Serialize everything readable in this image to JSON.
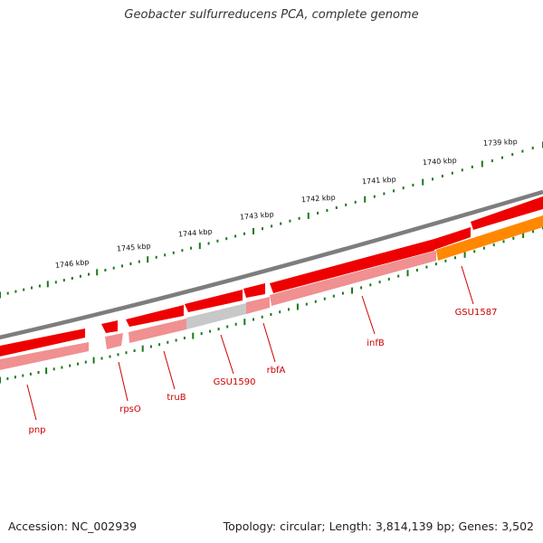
{
  "title": "Geobacter sulfurreducens PCA, complete genome",
  "footer": {
    "accession": "Accession: NC_002939",
    "topology": "Topology: circular; Length: 3,814,139 bp; Genes: 3,502"
  },
  "ruler": {
    "unit": "kbp",
    "ticks": [
      {
        "label": "1739 kbp"
      },
      {
        "label": "1740 kbp"
      },
      {
        "label": "1741 kbp"
      },
      {
        "label": "1742 kbp"
      },
      {
        "label": "1743 kbp"
      },
      {
        "label": "1744 kbp"
      },
      {
        "label": "1745 kbp"
      },
      {
        "label": "1746 kbp"
      }
    ]
  },
  "genes": [
    {
      "name": "pnp",
      "type": "CDS"
    },
    {
      "name": "rpsO",
      "type": "CDS"
    },
    {
      "name": "truB",
      "type": "CDS"
    },
    {
      "name": "GSU1590",
      "type": "CDS"
    },
    {
      "name": "rbfA",
      "type": "CDS"
    },
    {
      "name": "infB",
      "type": "CDS"
    },
    {
      "name": "GSU1587",
      "type": "CDS"
    }
  ],
  "colors": {
    "cds": "#ee0000",
    "cds_light": "#f09090",
    "unknown": "#bbbbbb",
    "special": "#ff8800",
    "backbone": "#808080",
    "ruler": "#1a7a1a",
    "label": "#cc0000"
  }
}
